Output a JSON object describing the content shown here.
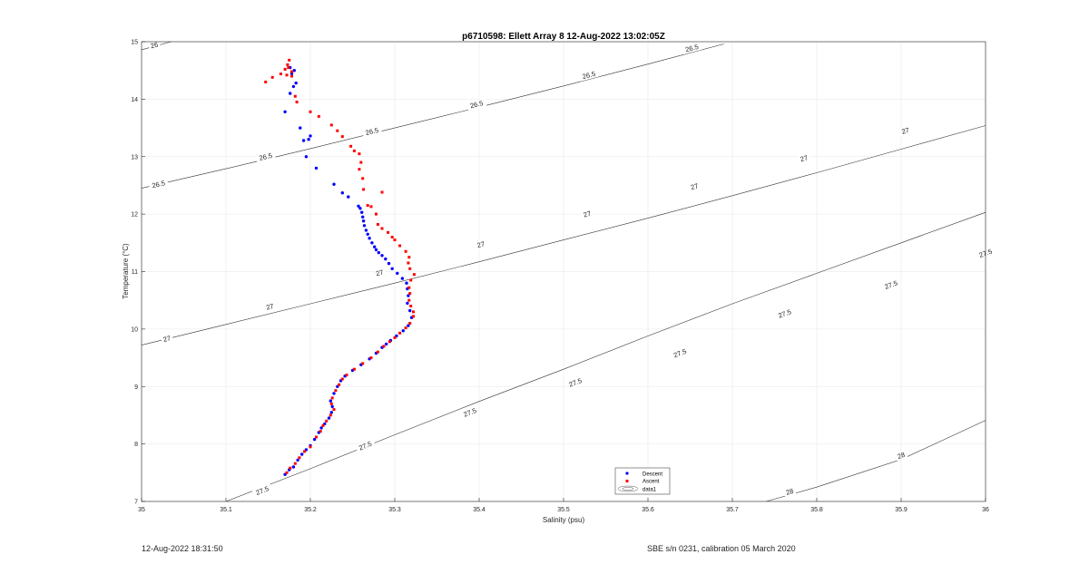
{
  "chart_data": {
    "type": "scatter",
    "title": "p6710598: Ellett Array 8 12-Aug-2022 13:02:05Z",
    "xlabel": "Salinity (psu)",
    "ylabel": "Temperature (°C)",
    "xlim": [
      35,
      36
    ],
    "ylim": [
      7,
      15
    ],
    "xticks": [
      "35",
      "35.1",
      "35.2",
      "35.3",
      "35.4",
      "35.5",
      "35.6",
      "35.7",
      "35.8",
      "35.9",
      "36"
    ],
    "yticks": [
      "7",
      "8",
      "9",
      "10",
      "11",
      "12",
      "13",
      "14",
      "15"
    ],
    "grid": true,
    "legend_position": "bottom-center",
    "legend": [
      "Descent",
      "Ascent",
      "data1"
    ],
    "contours": {
      "name": "data1",
      "levels": [
        {
          "level": "26",
          "points": [
            [
              35.0,
              14.86
            ],
            [
              35.035,
              15.0
            ]
          ],
          "labels": [
            [
              35.015,
              14.94
            ]
          ]
        },
        {
          "level": "26.5",
          "points": [
            [
              35.0,
              12.45
            ],
            [
              35.1,
              12.79
            ],
            [
              35.2,
              13.14
            ],
            [
              35.3,
              13.5
            ],
            [
              35.4,
              13.86
            ],
            [
              35.5,
              14.23
            ],
            [
              35.6,
              14.61
            ],
            [
              35.69,
              14.96
            ]
          ],
          "labels": [
            [
              35.02,
              12.52
            ],
            [
              35.147,
              13.0
            ],
            [
              35.273,
              13.44
            ],
            [
              35.397,
              13.91
            ],
            [
              35.53,
              14.42
            ],
            [
              35.652,
              14.89
            ]
          ]
        },
        {
          "level": "27",
          "points": [
            [
              35.0,
              9.72
            ],
            [
              35.1,
              10.08
            ],
            [
              35.2,
              10.44
            ],
            [
              35.3,
              10.8
            ],
            [
              35.4,
              11.17
            ],
            [
              35.5,
              11.55
            ],
            [
              35.6,
              11.93
            ],
            [
              35.7,
              12.32
            ],
            [
              35.8,
              12.72
            ],
            [
              35.9,
              13.13
            ],
            [
              36.0,
              13.54
            ]
          ],
          "labels": [
            [
              35.03,
              9.83
            ],
            [
              35.152,
              10.39
            ],
            [
              35.282,
              10.98
            ],
            [
              35.402,
              11.47
            ],
            [
              35.528,
              12.0
            ],
            [
              35.655,
              12.48
            ],
            [
              35.785,
              12.97
            ],
            [
              35.905,
              13.45
            ]
          ]
        },
        {
          "level": "27.5",
          "points": [
            [
              35.1,
              7.0
            ],
            [
              35.2,
              7.57
            ],
            [
              35.3,
              8.16
            ],
            [
              35.4,
              8.74
            ],
            [
              35.5,
              9.3
            ],
            [
              35.6,
              9.88
            ],
            [
              35.7,
              10.44
            ],
            [
              35.8,
              10.97
            ],
            [
              35.9,
              11.5
            ],
            [
              36.0,
              12.03
            ]
          ],
          "labels": [
            [
              35.143,
              7.19
            ],
            [
              35.265,
              7.97
            ],
            [
              35.389,
              8.55
            ],
            [
              35.514,
              9.07
            ],
            [
              35.638,
              9.58
            ],
            [
              35.762,
              10.27
            ],
            [
              35.888,
              10.77
            ],
            [
              36.0,
              11.32
            ]
          ]
        },
        {
          "level": "28",
          "points": [
            [
              35.74,
              7.0
            ],
            [
              35.8,
              7.25
            ],
            [
              35.9,
              7.73
            ],
            [
              36.0,
              8.41
            ]
          ],
          "labels": [
            [
              35.768,
              7.17
            ],
            [
              35.9,
              7.8
            ]
          ]
        }
      ]
    },
    "series": [
      {
        "name": "Descent",
        "color": "#0000ff",
        "points": [
          [
            35.17,
            7.47
          ],
          [
            35.175,
            7.55
          ],
          [
            35.18,
            7.6
          ],
          [
            35.185,
            7.72
          ],
          [
            35.19,
            7.82
          ],
          [
            35.195,
            7.9
          ],
          [
            35.2,
            7.97
          ],
          [
            35.205,
            8.08
          ],
          [
            35.21,
            8.2
          ],
          [
            35.213,
            8.28
          ],
          [
            35.217,
            8.35
          ],
          [
            35.222,
            8.45
          ],
          [
            35.225,
            8.55
          ],
          [
            35.226,
            8.65
          ],
          [
            35.224,
            8.75
          ],
          [
            35.228,
            8.88
          ],
          [
            35.232,
            9.0
          ],
          [
            35.236,
            9.1
          ],
          [
            35.241,
            9.18
          ],
          [
            35.25,
            9.28
          ],
          [
            35.26,
            9.38
          ],
          [
            35.27,
            9.48
          ],
          [
            35.278,
            9.58
          ],
          [
            35.285,
            9.68
          ],
          [
            35.29,
            9.74
          ],
          [
            35.295,
            9.8
          ],
          [
            35.302,
            9.88
          ],
          [
            35.31,
            9.97
          ],
          [
            35.316,
            10.06
          ],
          [
            35.32,
            10.2
          ],
          [
            35.318,
            10.32
          ],
          [
            35.315,
            10.45
          ],
          [
            35.316,
            10.58
          ],
          [
            35.315,
            10.7
          ],
          [
            35.314,
            10.8
          ],
          [
            35.309,
            10.88
          ],
          [
            35.303,
            10.97
          ],
          [
            35.297,
            11.05
          ],
          [
            35.293,
            11.14
          ],
          [
            35.289,
            11.22
          ],
          [
            35.285,
            11.28
          ],
          [
            35.281,
            11.33
          ],
          [
            35.278,
            11.38
          ],
          [
            35.276,
            11.43
          ],
          [
            35.273,
            11.5
          ],
          [
            35.27,
            11.58
          ],
          [
            35.268,
            11.65
          ],
          [
            35.266,
            11.72
          ],
          [
            35.264,
            11.8
          ],
          [
            35.263,
            11.88
          ],
          [
            35.262,
            11.95
          ],
          [
            35.261,
            12.03
          ],
          [
            35.259,
            12.1
          ],
          [
            35.257,
            12.14
          ],
          [
            35.245,
            12.3
          ],
          [
            35.238,
            12.37
          ],
          [
            35.228,
            12.52
          ],
          [
            35.207,
            12.8
          ],
          [
            35.2,
            13.36
          ],
          [
            35.198,
            13.3
          ],
          [
            35.192,
            13.28
          ],
          [
            35.188,
            13.5
          ],
          [
            35.195,
            13.0
          ],
          [
            35.17,
            13.78
          ],
          [
            35.176,
            14.1
          ],
          [
            35.18,
            14.22
          ],
          [
            35.183,
            14.28
          ],
          [
            35.178,
            14.45
          ],
          [
            35.181,
            14.5
          ],
          [
            35.176,
            14.55
          ]
        ]
      },
      {
        "name": "Ascent",
        "color": "#ff0000",
        "points": [
          [
            35.172,
            7.5
          ],
          [
            35.176,
            7.58
          ],
          [
            35.182,
            7.66
          ],
          [
            35.187,
            7.76
          ],
          [
            35.193,
            7.87
          ],
          [
            35.2,
            7.95
          ],
          [
            35.207,
            8.12
          ],
          [
            35.212,
            8.22
          ],
          [
            35.215,
            8.32
          ],
          [
            35.219,
            8.4
          ],
          [
            35.224,
            8.5
          ],
          [
            35.228,
            8.6
          ],
          [
            35.225,
            8.7
          ],
          [
            35.226,
            8.8
          ],
          [
            35.23,
            8.93
          ],
          [
            35.234,
            9.03
          ],
          [
            35.238,
            9.13
          ],
          [
            35.243,
            9.2
          ],
          [
            35.252,
            9.3
          ],
          [
            35.262,
            9.4
          ],
          [
            35.272,
            9.5
          ],
          [
            35.28,
            9.6
          ],
          [
            35.287,
            9.7
          ],
          [
            35.294,
            9.78
          ],
          [
            35.3,
            9.85
          ],
          [
            35.306,
            9.93
          ],
          [
            35.313,
            10.02
          ],
          [
            35.318,
            10.1
          ],
          [
            35.322,
            10.22
          ],
          [
            35.322,
            10.3
          ],
          [
            35.319,
            10.4
          ],
          [
            35.317,
            10.5
          ],
          [
            35.318,
            10.62
          ],
          [
            35.317,
            10.72
          ],
          [
            35.319,
            10.85
          ],
          [
            35.323,
            10.95
          ],
          [
            35.318,
            11.05
          ],
          [
            35.316,
            11.15
          ],
          [
            35.317,
            11.25
          ],
          [
            35.313,
            11.35
          ],
          [
            35.306,
            11.45
          ],
          [
            35.3,
            11.55
          ],
          [
            35.297,
            11.6
          ],
          [
            35.292,
            11.68
          ],
          [
            35.285,
            11.75
          ],
          [
            35.28,
            11.82
          ],
          [
            35.278,
            12.0
          ],
          [
            35.272,
            12.13
          ],
          [
            35.268,
            12.15
          ],
          [
            35.285,
            12.38
          ],
          [
            35.263,
            12.43
          ],
          [
            35.262,
            12.62
          ],
          [
            35.258,
            12.78
          ],
          [
            35.26,
            12.9
          ],
          [
            35.258,
            13.05
          ],
          [
            35.252,
            13.1
          ],
          [
            35.248,
            13.18
          ],
          [
            35.238,
            13.35
          ],
          [
            35.232,
            13.45
          ],
          [
            35.225,
            13.55
          ],
          [
            35.21,
            13.7
          ],
          [
            35.2,
            13.78
          ],
          [
            35.184,
            13.95
          ],
          [
            35.182,
            14.05
          ],
          [
            35.178,
            14.4
          ],
          [
            35.172,
            14.42
          ],
          [
            35.165,
            14.44
          ],
          [
            35.155,
            14.38
          ],
          [
            35.147,
            14.3
          ],
          [
            35.178,
            14.48
          ],
          [
            35.174,
            14.55
          ],
          [
            35.173,
            14.6
          ],
          [
            35.175,
            14.68
          ],
          [
            35.17,
            14.52
          ]
        ]
      }
    ]
  },
  "footer": {
    "left": "12-Aug-2022 18:31:50",
    "right": "SBE s/n 0231, calibration 05 March 2020"
  }
}
